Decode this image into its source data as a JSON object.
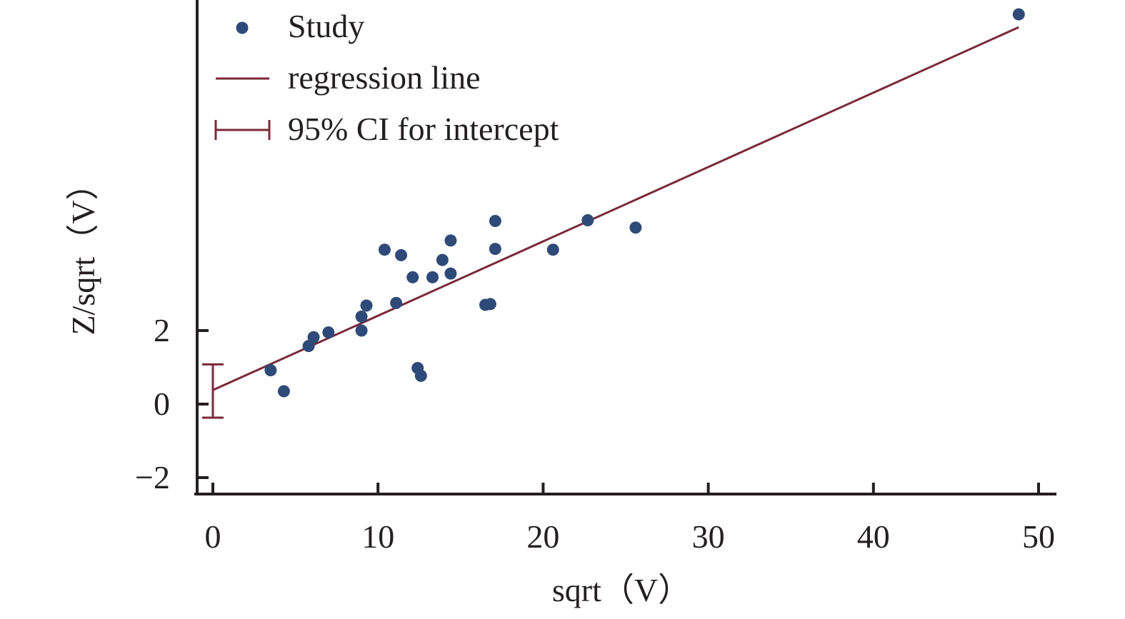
{
  "colors": {
    "point": "#2e4a78",
    "regression": "#7a2a3a",
    "ci": "#7a2a3a",
    "axis": "#231f20"
  },
  "chart_data": {
    "type": "scatter",
    "title": "",
    "xlabel": "sqrt（V）",
    "ylabel": "Z/sqrt（V）",
    "xlim": [
      -1,
      51
    ],
    "ylim": [
      -2.5,
      11.3
    ],
    "x_ticks": [
      0,
      10,
      20,
      30,
      40,
      50
    ],
    "x_tick_labels": [
      "0",
      "10",
      "20",
      "30",
      "40",
      "50"
    ],
    "y_ticks": [
      -2,
      0,
      2
    ],
    "y_tick_labels": [
      "−2",
      "0",
      "2"
    ],
    "legend": {
      "placement": "top-left",
      "entries": [
        {
          "key": "study",
          "label": "Study",
          "marker": "dot"
        },
        {
          "key": "regression",
          "label": "regression line",
          "marker": "line"
        },
        {
          "key": "ci",
          "label": "95% CI for intercept",
          "marker": "errorbar"
        }
      ]
    },
    "series": [
      {
        "key": "study",
        "points": [
          {
            "x": 3.5,
            "y": 0.92
          },
          {
            "x": 4.3,
            "y": 0.35
          },
          {
            "x": 5.8,
            "y": 1.58
          },
          {
            "x": 6.1,
            "y": 1.82
          },
          {
            "x": 7.0,
            "y": 1.95
          },
          {
            "x": 9.0,
            "y": 2.0
          },
          {
            "x": 9.0,
            "y": 2.38
          },
          {
            "x": 9.3,
            "y": 2.68
          },
          {
            "x": 10.4,
            "y": 4.2
          },
          {
            "x": 11.1,
            "y": 2.75
          },
          {
            "x": 11.4,
            "y": 4.05
          },
          {
            "x": 12.1,
            "y": 3.45
          },
          {
            "x": 12.4,
            "y": 0.98
          },
          {
            "x": 12.6,
            "y": 0.77
          },
          {
            "x": 13.3,
            "y": 3.45
          },
          {
            "x": 13.9,
            "y": 3.92
          },
          {
            "x": 14.4,
            "y": 4.45
          },
          {
            "x": 14.4,
            "y": 3.55
          },
          {
            "x": 16.5,
            "y": 2.7
          },
          {
            "x": 16.8,
            "y": 2.72
          },
          {
            "x": 17.1,
            "y": 4.98
          },
          {
            "x": 17.1,
            "y": 4.22
          },
          {
            "x": 20.6,
            "y": 4.2
          },
          {
            "x": 22.7,
            "y": 5.0
          },
          {
            "x": 25.6,
            "y": 4.8
          },
          {
            "x": 48.8,
            "y": 10.6
          }
        ]
      }
    ],
    "regression_line": {
      "x": [
        0,
        48.8
      ],
      "y": [
        0.38,
        10.25
      ]
    },
    "intercept_ci": {
      "x": 0,
      "y": 0.38,
      "low": -0.37,
      "high": 1.08
    }
  }
}
